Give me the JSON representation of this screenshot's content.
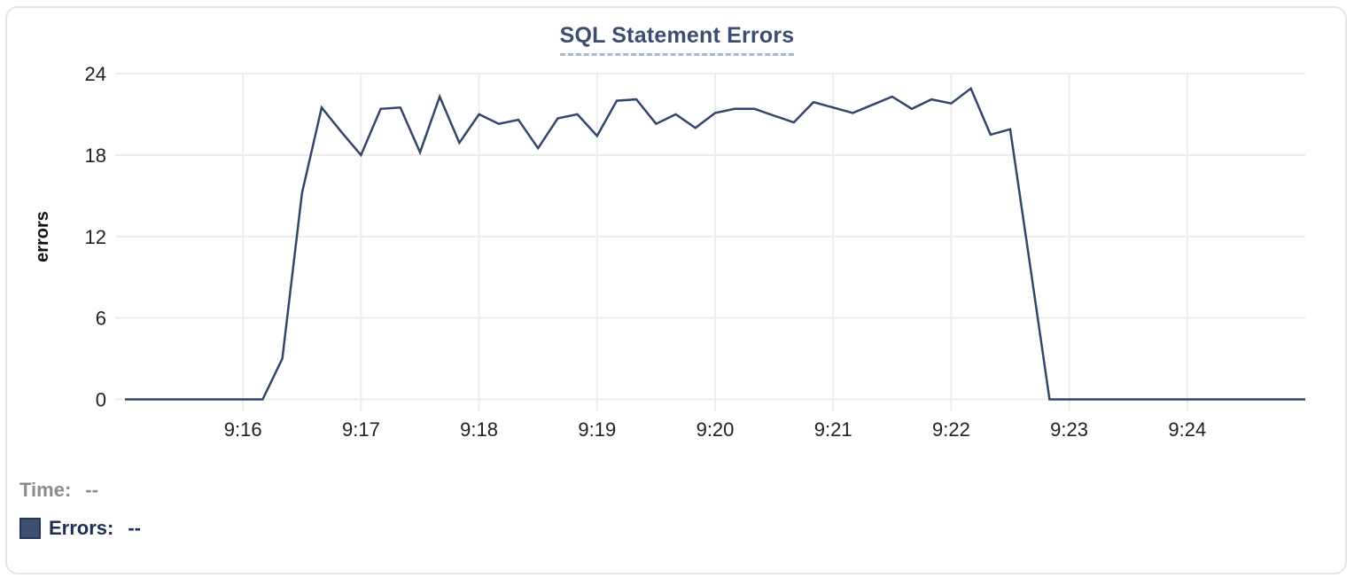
{
  "title": "SQL Statement Errors",
  "legend": {
    "time_label": "Time:",
    "time_value": "--",
    "errors_label": "Errors:",
    "errors_value": "--"
  },
  "colors": {
    "title_navy": "#3b4e70",
    "title_underline": "#aab7cd",
    "line": "#33466a",
    "grid": "#ececec",
    "axis_text": "#1f1f1f",
    "muted_gray": "#8c8c8c",
    "legend_navy": "#1d2d55",
    "swatch_fill": "#3e4f6f",
    "swatch_border": "#25355c",
    "card_border": "#e4e4e4"
  },
  "chart_data": {
    "type": "line",
    "title": "SQL Statement Errors",
    "xlabel": "",
    "ylabel": "errors",
    "ylim": [
      0,
      24
    ],
    "yticks": [
      0,
      6,
      12,
      18,
      24
    ],
    "xtick_labels": [
      "9:16",
      "9:17",
      "9:18",
      "9:19",
      "9:20",
      "9:21",
      "9:22",
      "9:23",
      "9:24"
    ],
    "xtick_seconds": [
      60,
      120,
      180,
      240,
      300,
      360,
      420,
      480,
      540
    ],
    "x_start_time": "9:15:00",
    "x_end_time": "9:25:00",
    "x_span_seconds": 600,
    "sample_interval_seconds": 10,
    "grid": true,
    "legend_position": "bottom-left",
    "series": [
      {
        "name": "Errors",
        "color": "#33466a",
        "values": [
          0,
          0,
          0,
          0,
          0,
          0,
          0,
          0,
          3,
          15.2,
          21.5,
          19.7,
          18,
          21.4,
          21.5,
          18.2,
          22.3,
          18.9,
          21,
          20.3,
          20.6,
          18.5,
          20.7,
          21,
          19.4,
          22,
          22.1,
          20.3,
          21,
          20,
          21.1,
          21.4,
          21.4,
          20.9,
          20.4,
          21.9,
          21.5,
          21.1,
          21.7,
          22.3,
          21.4,
          22.1,
          21.8,
          22.9,
          19.5,
          19.9,
          10,
          0,
          0,
          0,
          0,
          0,
          0,
          0,
          0,
          0,
          0,
          0,
          0,
          0,
          0
        ]
      }
    ]
  }
}
